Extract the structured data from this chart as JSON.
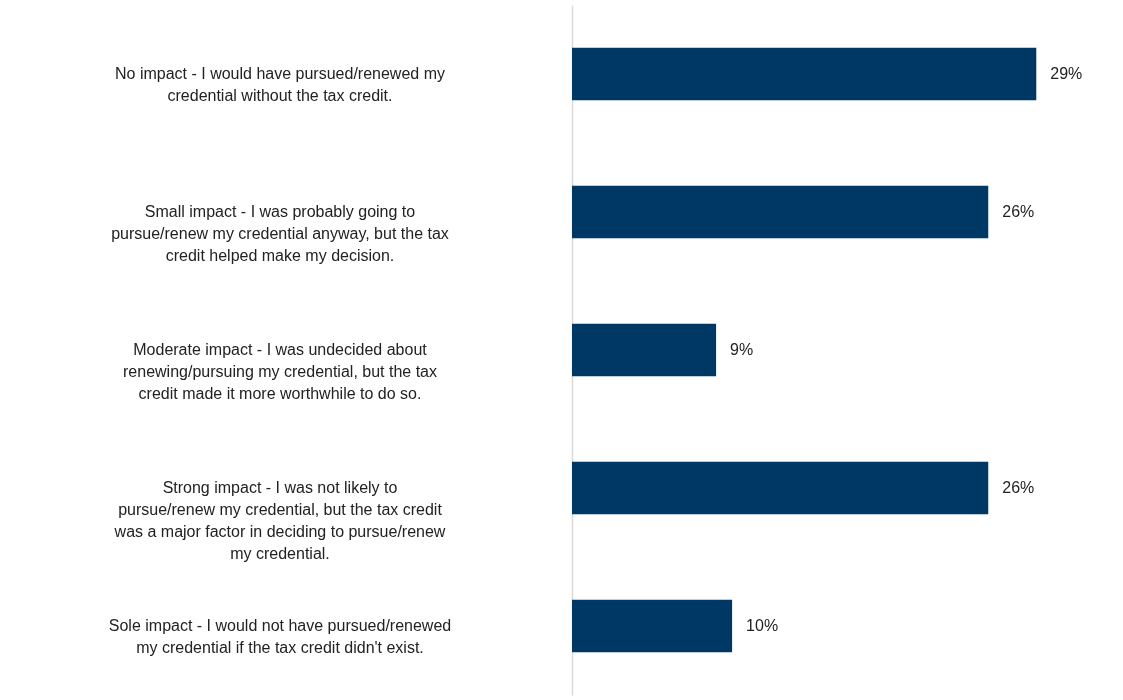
{
  "chart_data": {
    "type": "bar",
    "orientation": "horizontal",
    "data_labels": true,
    "color": "#003865",
    "categories": [
      "No impact - I would have pursued/renewed my credential without the tax credit.",
      "Small impact - I was probably going to pursue/renew my credential anyway, but the tax credit helped make my decision.",
      "Moderate impact - I was undecided about renewing/pursuing my credential, but the tax credit made it more worthwhile to do so.",
      "Strong impact - I was not likely to pursue/renew my credential, but the tax credit was a major factor in deciding to pursue/renew my credential.",
      "Sole impact - I would not have pursued/renewed my credential if the tax credit didn't exist."
    ],
    "values": [
      29,
      26,
      9,
      26,
      10
    ],
    "value_labels": [
      "29%",
      "26%",
      "9%",
      "26%",
      "10%"
    ]
  }
}
